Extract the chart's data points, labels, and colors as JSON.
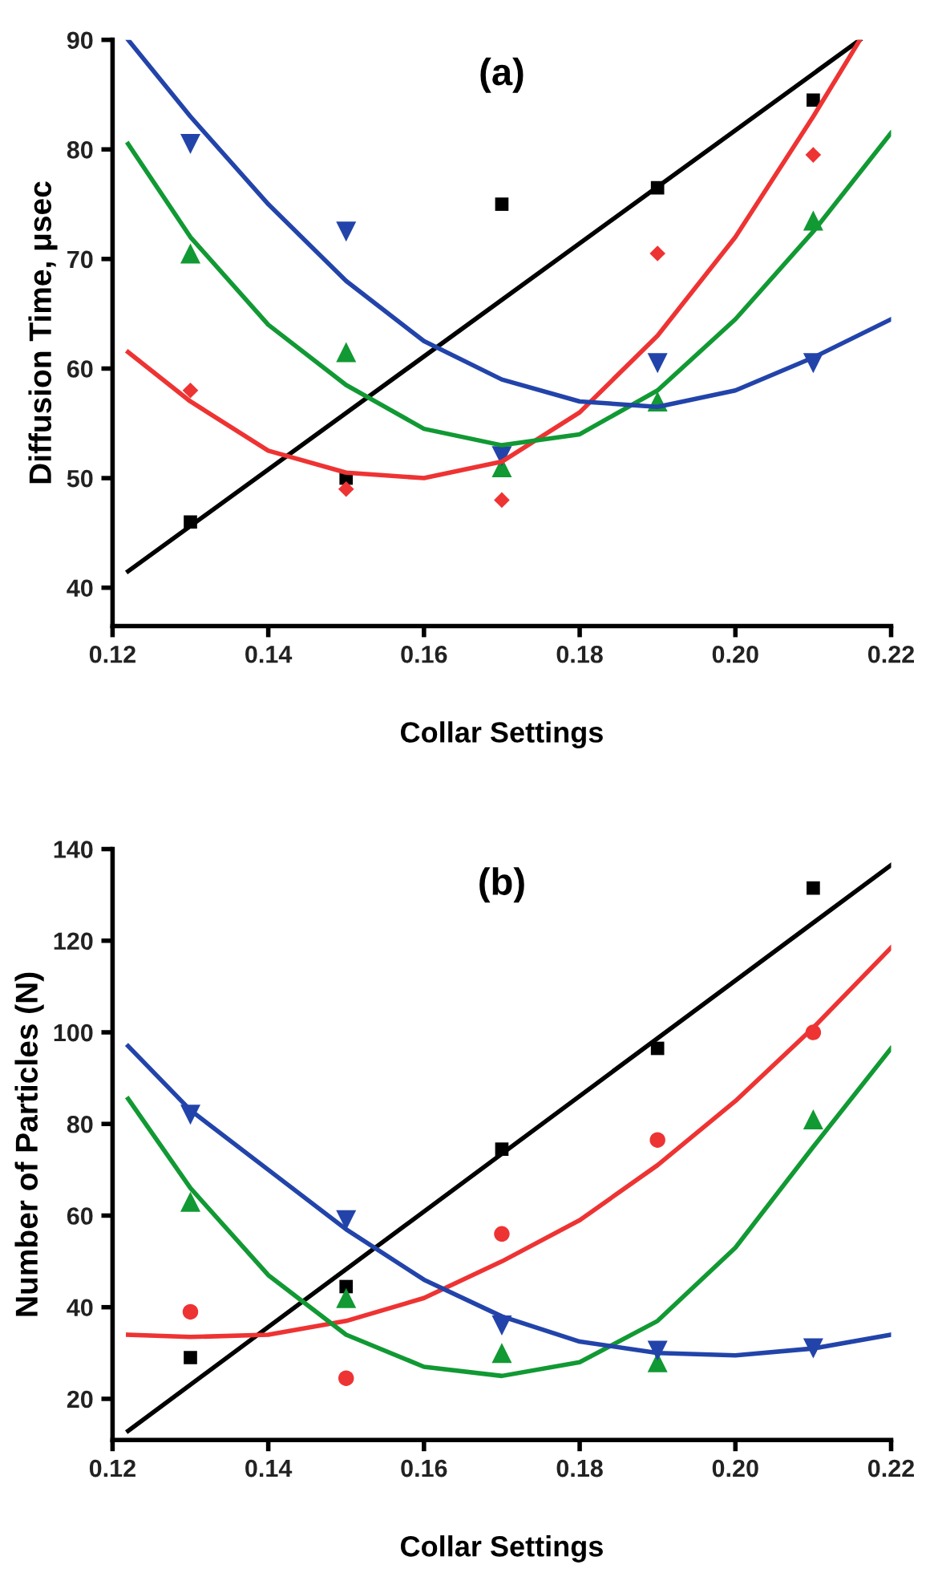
{
  "chart_data": [
    {
      "type": "scatter",
      "title": "(a)",
      "xlabel": "Collar Settings",
      "ylabel": "Diffusion Time, μsec",
      "x": [
        0.13,
        0.15,
        0.17,
        0.19,
        0.21
      ],
      "xlim": [
        0.12,
        0.22
      ],
      "xticks": [
        {
          "value": 0.12,
          "label": "0.12"
        },
        {
          "value": 0.14,
          "label": "0.14"
        },
        {
          "value": 0.16,
          "label": "0.16"
        },
        {
          "value": 0.18,
          "label": "0.18"
        },
        {
          "value": 0.2,
          "label": "0.20"
        },
        {
          "value": 0.22,
          "label": "0.22"
        }
      ],
      "ylim": [
        36.5,
        90
      ],
      "yticks": [
        40,
        50,
        60,
        70,
        80,
        90
      ],
      "grid": false,
      "legend": false,
      "series": [
        {
          "color": "#000000",
          "marker": "square",
          "values": [
            46,
            50,
            75,
            76.5,
            84.5
          ]
        },
        {
          "color": "#ee3333",
          "marker": "diamond",
          "values": [
            58,
            49,
            48,
            70.5,
            79.5
          ]
        },
        {
          "color": "#119933",
          "marker": "triangle",
          "values": [
            70.5,
            61.5,
            51,
            57,
            73.5
          ]
        },
        {
          "color": "#2244aa",
          "marker": "triangle-down",
          "values": [
            80.5,
            72.5,
            52,
            60.5,
            60.5
          ]
        },
        {
          "type": "line",
          "color": "#000000",
          "marker": "none",
          "x": [
            0.122,
            0.216
          ],
          "values": [
            41.5,
            90
          ]
        },
        {
          "type": "line",
          "color": "#ee3333",
          "marker": "none",
          "x": [
            0.122,
            0.13,
            0.14,
            0.15,
            0.16,
            0.17,
            0.18,
            0.19,
            0.2,
            0.21,
            0.216
          ],
          "values": [
            61.5,
            57,
            52.5,
            50.5,
            50,
            51.5,
            56,
            63,
            72,
            83,
            90
          ]
        },
        {
          "type": "line",
          "color": "#119933",
          "marker": "none",
          "x": [
            0.122,
            0.13,
            0.14,
            0.15,
            0.16,
            0.17,
            0.18,
            0.19,
            0.2,
            0.21,
            0.22
          ],
          "values": [
            80.5,
            72,
            64,
            58.5,
            54.5,
            53,
            54,
            58,
            64.5,
            72.5,
            81.5
          ]
        },
        {
          "type": "line",
          "color": "#2244aa",
          "marker": "none",
          "x": [
            0.122,
            0.13,
            0.14,
            0.15,
            0.16,
            0.17,
            0.18,
            0.19,
            0.2,
            0.21,
            0.22
          ],
          "values": [
            90,
            83,
            75,
            68,
            62.5,
            59,
            57,
            56.5,
            58,
            61,
            64.5
          ]
        }
      ]
    },
    {
      "type": "scatter",
      "title": "(b)",
      "xlabel": "Collar Settings",
      "ylabel": "Number of Particles (N)",
      "x": [
        0.13,
        0.15,
        0.17,
        0.19,
        0.21
      ],
      "xlim": [
        0.12,
        0.22
      ],
      "xticks": [
        {
          "value": 0.12,
          "label": "0.12"
        },
        {
          "value": 0.14,
          "label": "0.14"
        },
        {
          "value": 0.16,
          "label": "0.16"
        },
        {
          "value": 0.18,
          "label": "0.18"
        },
        {
          "value": 0.2,
          "label": "0.20"
        },
        {
          "value": 0.22,
          "label": "0.22"
        }
      ],
      "ylim": [
        11,
        140
      ],
      "yticks": [
        20,
        40,
        60,
        80,
        100,
        120,
        140
      ],
      "grid": false,
      "legend": false,
      "series": [
        {
          "color": "#000000",
          "marker": "square",
          "values": [
            29,
            44.5,
            74.5,
            96.5,
            131.5
          ]
        },
        {
          "color": "#ee3333",
          "marker": "circle",
          "values": [
            39,
            24.5,
            56,
            76.5,
            100
          ]
        },
        {
          "color": "#119933",
          "marker": "triangle",
          "values": [
            63,
            42,
            30,
            28,
            81
          ]
        },
        {
          "color": "#2244aa",
          "marker": "triangle-down",
          "values": [
            82,
            59,
            36,
            30.5,
            31
          ]
        },
        {
          "type": "line",
          "color": "#000000",
          "marker": "none",
          "x": [
            0.122,
            0.22
          ],
          "values": [
            13,
            136.5
          ]
        },
        {
          "type": "line",
          "color": "#ee3333",
          "marker": "none",
          "x": [
            0.122,
            0.13,
            0.14,
            0.15,
            0.16,
            0.17,
            0.18,
            0.19,
            0.2,
            0.21,
            0.22
          ],
          "values": [
            34,
            33.5,
            34,
            37,
            42,
            50,
            59,
            71,
            85,
            101,
            118.5
          ]
        },
        {
          "type": "line",
          "color": "#119933",
          "marker": "none",
          "x": [
            0.122,
            0.13,
            0.14,
            0.15,
            0.16,
            0.17,
            0.18,
            0.19,
            0.2,
            0.21,
            0.22
          ],
          "values": [
            85.5,
            66,
            47,
            34,
            27,
            25,
            28,
            37,
            53,
            75,
            96.5
          ]
        },
        {
          "type": "line",
          "color": "#2244aa",
          "marker": "none",
          "x": [
            0.122,
            0.13,
            0.14,
            0.15,
            0.16,
            0.17,
            0.18,
            0.19,
            0.2,
            0.21,
            0.22
          ],
          "values": [
            97,
            83,
            70,
            57,
            46,
            38,
            32.5,
            30,
            29.5,
            31,
            34
          ]
        }
      ]
    }
  ]
}
